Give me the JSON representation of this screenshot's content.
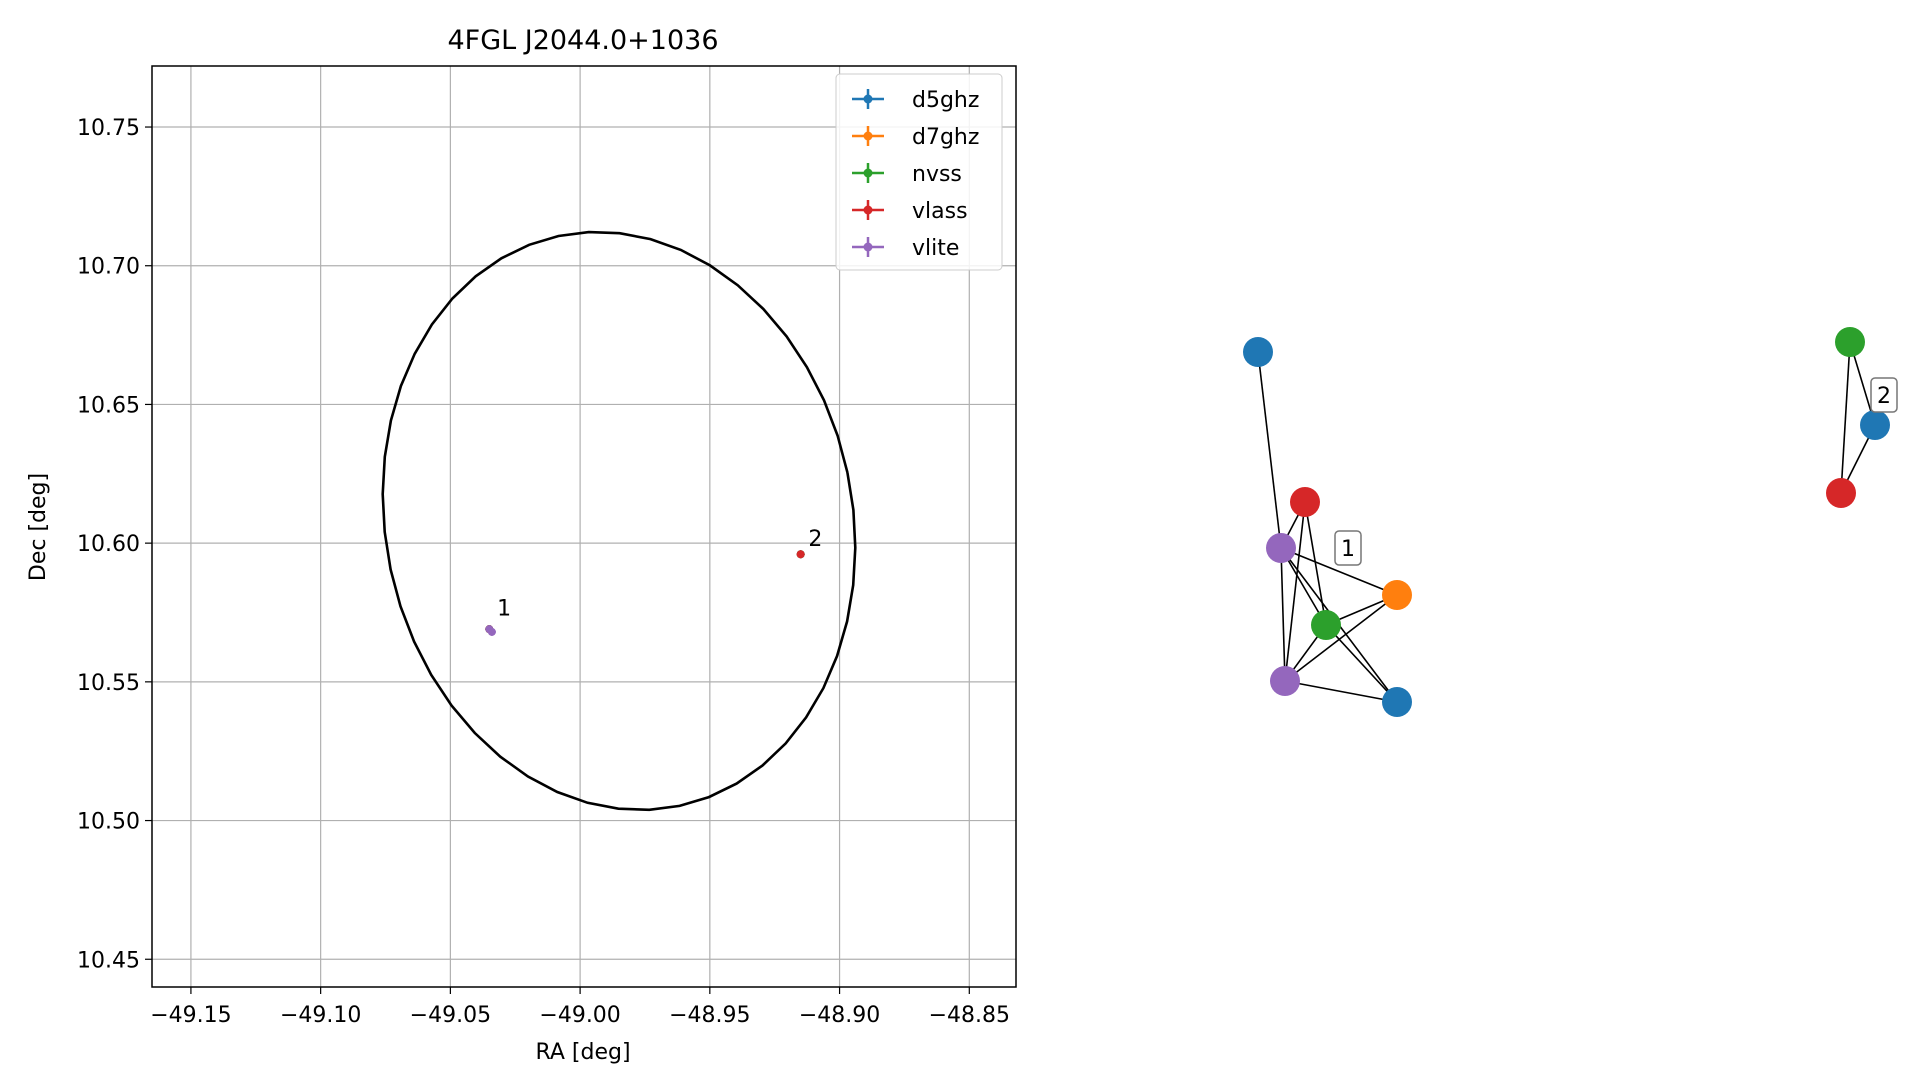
{
  "chart_data": [
    {
      "type": "scatter",
      "title": "4FGL J2044.0+1036",
      "xlabel": "RA [deg]",
      "ylabel": "Dec [deg]",
      "xlim": [
        -49.165,
        -48.832
      ],
      "ylim": [
        10.44,
        10.772
      ],
      "xticks": [
        -49.15,
        -49.1,
        -49.05,
        -49.0,
        -48.95,
        -48.9,
        -48.85
      ],
      "xtick_labels": [
        "−49.15",
        "−49.10",
        "−49.05",
        "−49.00",
        "−48.95",
        "−48.90",
        "−48.85"
      ],
      "yticks": [
        10.45,
        10.5,
        10.55,
        10.6,
        10.65,
        10.7,
        10.75
      ],
      "ytick_labels": [
        "10.45",
        "10.50",
        "10.55",
        "10.60",
        "10.65",
        "10.70",
        "10.75"
      ],
      "grid": true,
      "legend_position": "top-right",
      "series": [
        {
          "name": "d5ghz",
          "color": "#1f77b4",
          "points": [
            {
              "x": -49.035,
              "y": 10.569
            },
            {
              "x": -48.915,
              "y": 10.596
            }
          ]
        },
        {
          "name": "d7ghz",
          "color": "#ff7f0e",
          "points": [
            {
              "x": -49.035,
              "y": 10.569
            }
          ]
        },
        {
          "name": "nvss",
          "color": "#2ca02c",
          "points": [
            {
              "x": -49.035,
              "y": 10.569
            },
            {
              "x": -48.915,
              "y": 10.596
            }
          ]
        },
        {
          "name": "vlass",
          "color": "#d62728",
          "points": [
            {
              "x": -49.035,
              "y": 10.569
            },
            {
              "x": -48.915,
              "y": 10.596
            }
          ]
        },
        {
          "name": "vlite",
          "color": "#9467bd",
          "points": [
            {
              "x": -49.035,
              "y": 10.569
            },
            {
              "x": -49.034,
              "y": 10.568
            }
          ]
        }
      ],
      "annotations": [
        {
          "text": "1",
          "x": -49.032,
          "y": 10.574
        },
        {
          "text": "2",
          "x": -48.912,
          "y": 10.599
        }
      ],
      "ellipse": {
        "center_ra": -48.985,
        "center_dec": 10.608,
        "half_width_ra": 0.09,
        "half_height_dec": 0.105,
        "rotation_deg": -12,
        "color": "#000000"
      }
    },
    {
      "type": "network",
      "nodes": [
        {
          "id": "a",
          "series": "d5ghz",
          "color": "#1f77b4"
        },
        {
          "id": "b",
          "series": "vlass",
          "color": "#d62728"
        },
        {
          "id": "c",
          "series": "vlite",
          "color": "#9467bd"
        },
        {
          "id": "d",
          "series": "d7ghz",
          "color": "#ff7f0e"
        },
        {
          "id": "e",
          "series": "nvss",
          "color": "#2ca02c"
        },
        {
          "id": "f",
          "series": "vlite",
          "color": "#9467bd"
        },
        {
          "id": "g",
          "series": "d5ghz",
          "color": "#1f77b4"
        },
        {
          "id": "h",
          "series": "nvss",
          "color": "#2ca02c"
        },
        {
          "id": "i",
          "series": "d5ghz",
          "color": "#1f77b4"
        },
        {
          "id": "j",
          "series": "vlass",
          "color": "#d62728"
        }
      ],
      "edges": [
        [
          "a",
          "c"
        ],
        [
          "b",
          "c"
        ],
        [
          "b",
          "e"
        ],
        [
          "b",
          "f"
        ],
        [
          "c",
          "e"
        ],
        [
          "c",
          "d"
        ],
        [
          "c",
          "g"
        ],
        [
          "c",
          "f"
        ],
        [
          "e",
          "d"
        ],
        [
          "e",
          "g"
        ],
        [
          "e",
          "f"
        ],
        [
          "d",
          "f"
        ],
        [
          "f",
          "g"
        ],
        [
          "h",
          "i"
        ],
        [
          "h",
          "j"
        ],
        [
          "i",
          "j"
        ]
      ],
      "labels": [
        {
          "text": "1",
          "cluster": 1
        },
        {
          "text": "2",
          "cluster": 2
        }
      ]
    }
  ]
}
